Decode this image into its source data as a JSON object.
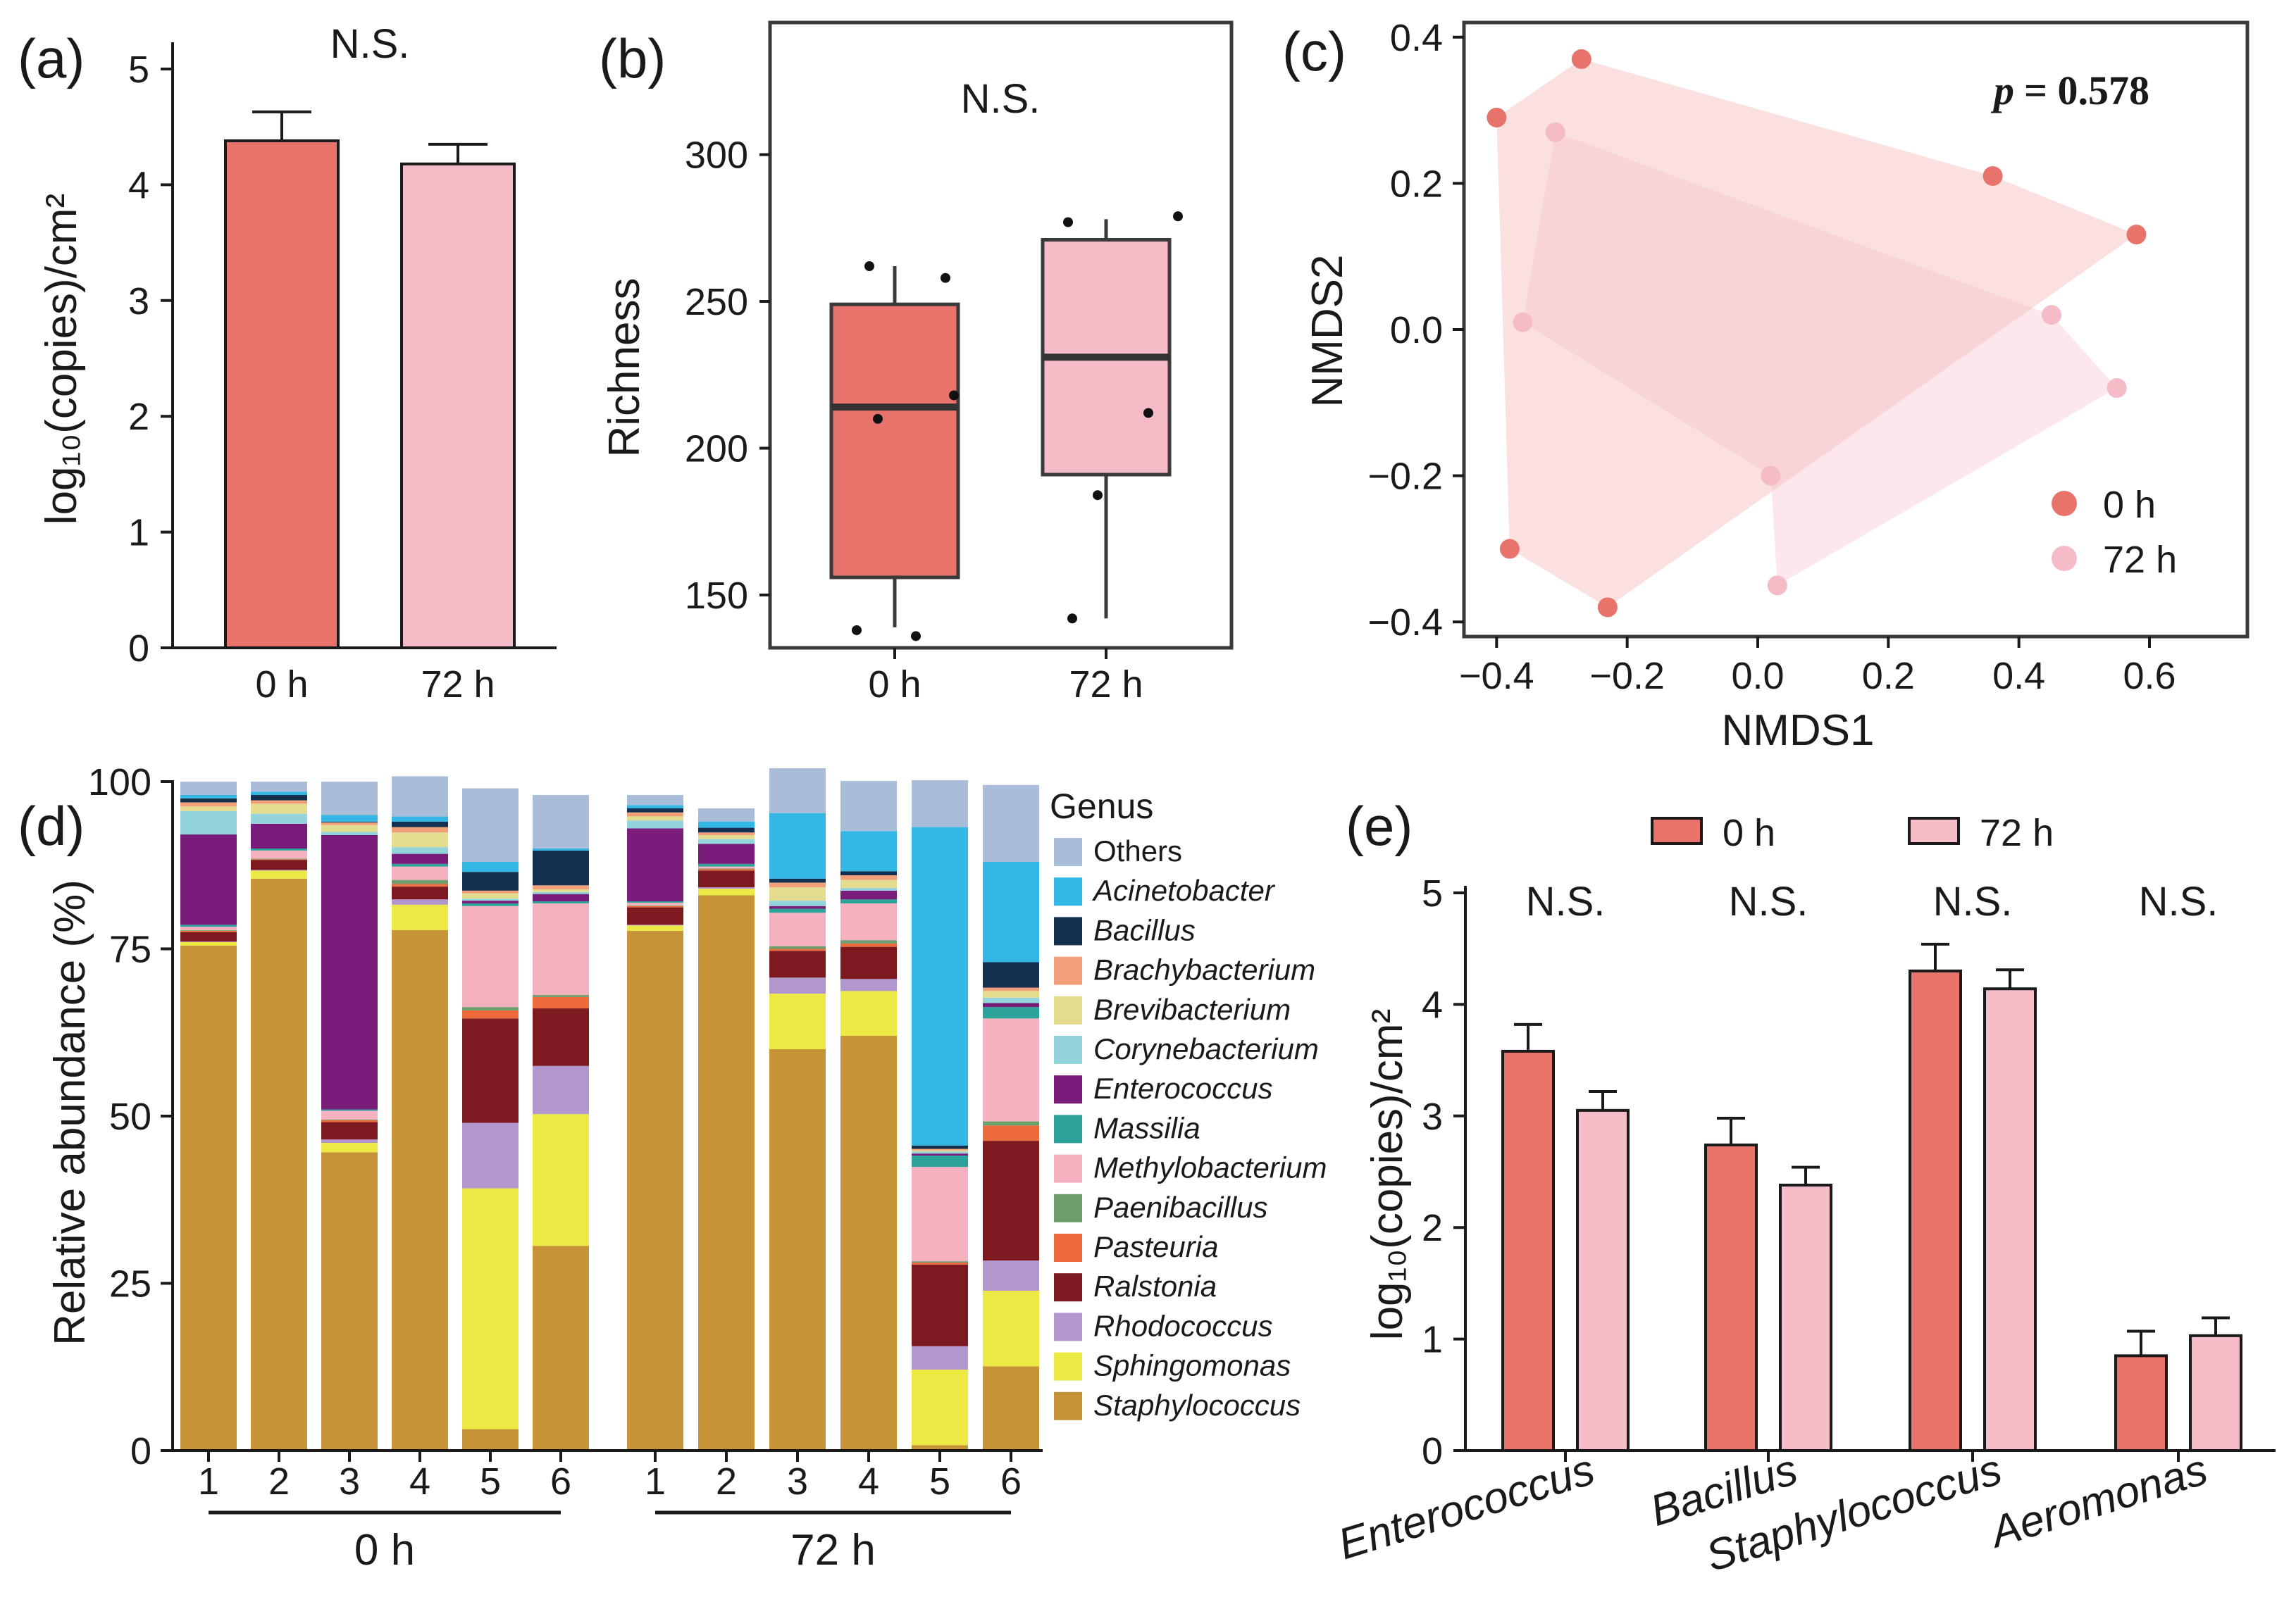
{
  "chart_data": [
    {
      "id": "a",
      "type": "bar",
      "panel_label": "(a)",
      "categories": [
        "0 h",
        "72 h"
      ],
      "values": [
        4.38,
        4.18
      ],
      "errors": [
        0.25,
        0.17
      ],
      "colors": [
        "#e8736b",
        "#f5bcc8"
      ],
      "ylabel": "log₁₀(copies)/cm²",
      "ylim": [
        0,
        5
      ],
      "yticks": [
        "0",
        "1",
        "2",
        "3",
        "4",
        "5"
      ],
      "annotation": "N.S."
    },
    {
      "id": "b",
      "type": "box",
      "panel_label": "(b)",
      "categories": [
        "0 h",
        "72 h"
      ],
      "ylabel": "Richness",
      "ylim": [
        132,
        345
      ],
      "yticks": [
        "150",
        "200",
        "250",
        "300"
      ],
      "annotation": "N.S.",
      "boxes": [
        {
          "q1": 156,
          "median": 214,
          "q3": 249,
          "whisker_low": 139,
          "whisker_high": 262,
          "color": "#e8736b",
          "points": [
            [
              -0.06,
              262
            ],
            [
              0.12,
              258
            ],
            [
              -0.04,
              210
            ],
            [
              0.14,
              218
            ],
            [
              -0.09,
              138
            ],
            [
              0.05,
              136
            ]
          ]
        },
        {
          "q1": 191,
          "median": 231,
          "q3": 271,
          "whisker_low": 142,
          "whisker_high": 278,
          "color": "#f5bcc8",
          "points": [
            [
              -0.09,
              277
            ],
            [
              0.17,
              279
            ],
            [
              0.1,
              212
            ],
            [
              -0.02,
              184
            ],
            [
              -0.08,
              142
            ]
          ]
        }
      ]
    },
    {
      "id": "c",
      "type": "scatter",
      "panel_label": "(c)",
      "xlabel": "NMDS1",
      "ylabel": "NMDS2",
      "xlim": [
        -0.45,
        0.75
      ],
      "ylim": [
        -0.42,
        0.42
      ],
      "xticks": [
        "−0.4",
        "−0.2",
        "0.0",
        "0.2",
        "0.4",
        "0.6"
      ],
      "yticks": [
        "−0.4",
        "−0.2",
        "0.0",
        "0.2",
        "0.4"
      ],
      "p_label": "p",
      "p_value": "= 0.578",
      "series": [
        {
          "name": "0 h",
          "color": "#e8736b",
          "points": [
            [
              -0.27,
              0.37
            ],
            [
              -0.4,
              0.29
            ],
            [
              0.36,
              0.21
            ],
            [
              0.58,
              0.13
            ],
            [
              -0.38,
              -0.3
            ],
            [
              -0.23,
              -0.38
            ]
          ]
        },
        {
          "name": "72 h",
          "color": "#f5bcc8",
          "points": [
            [
              -0.31,
              0.27
            ],
            [
              -0.36,
              0.01
            ],
            [
              0.45,
              0.02
            ],
            [
              0.55,
              -0.08
            ],
            [
              0.02,
              -0.2
            ],
            [
              0.03,
              -0.35
            ]
          ]
        }
      ],
      "hulls": [
        {
          "color": "#e8736b",
          "opacity": 0.22,
          "order": [
            0,
            2,
            3,
            5,
            4,
            1
          ]
        },
        {
          "color": "#f5bcc8",
          "opacity": 0.35,
          "order": [
            0,
            2,
            3,
            5,
            4,
            1
          ]
        }
      ]
    },
    {
      "id": "d",
      "type": "stacked-bar",
      "panel_label": "(d)",
      "ylabel": "Relative abundance (%)",
      "ylim": [
        0,
        100
      ],
      "yticks": [
        "0",
        "25",
        "50",
        "75",
        "100"
      ],
      "legend_title": "Genus",
      "groups": [
        {
          "name": "0 h",
          "samples": [
            "1",
            "2",
            "3",
            "4",
            "5",
            "6"
          ]
        },
        {
          "name": "72 h",
          "samples": [
            "1",
            "2",
            "3",
            "4",
            "5",
            "6"
          ]
        }
      ],
      "genera": [
        {
          "name": "Others",
          "color": "#a9bdd9",
          "italic": false
        },
        {
          "name": "Acinetobacter",
          "color": "#33b8e6",
          "italic": true
        },
        {
          "name": "Bacillus",
          "color": "#13304f",
          "italic": true
        },
        {
          "name": "Brachybacterium",
          "color": "#f2a07a",
          "italic": true
        },
        {
          "name": "Brevibacterium",
          "color": "#e3dc8e",
          "italic": true
        },
        {
          "name": "Corynebacterium",
          "color": "#93d3dc",
          "italic": true
        },
        {
          "name": "Enterococcus",
          "color": "#7a1c7a",
          "italic": true
        },
        {
          "name": "Massilia",
          "color": "#2ba39b",
          "italic": true
        },
        {
          "name": "Methylobacterium",
          "color": "#f5b1bf",
          "italic": true
        },
        {
          "name": "Paenibacillus",
          "color": "#6b9e6b",
          "italic": true
        },
        {
          "name": "Pasteuria",
          "color": "#ec6a3b",
          "italic": true
        },
        {
          "name": "Ralstonia",
          "color": "#7d1a1f",
          "italic": true
        },
        {
          "name": "Rhodococcus",
          "color": "#b197cd",
          "italic": true
        },
        {
          "name": "Sphingomonas",
          "color": "#ece844",
          "italic": true
        },
        {
          "name": "Staphylococcus",
          "color": "#c69436",
          "italic": true
        }
      ],
      "abundance": [
        [
          2.0,
          0.5,
          0.6,
          0.6,
          0.7,
          3.5,
          13.5,
          0.3,
          0.5,
          0.1,
          0.2,
          1.4,
          0.1,
          0.5,
          75.5
        ],
        [
          1.5,
          0.5,
          0.8,
          0.5,
          1.5,
          1.5,
          3.7,
          0.3,
          1.2,
          0.1,
          0.1,
          1.5,
          0.1,
          1.2,
          85.5
        ],
        [
          5.0,
          1.0,
          0.1,
          0.4,
          1.0,
          0.5,
          41.0,
          0.2,
          1.3,
          0.1,
          0.3,
          2.6,
          0.5,
          1.4,
          44.6
        ],
        [
          6.0,
          0.8,
          0.8,
          0.8,
          2.2,
          1.0,
          1.5,
          0.4,
          2.0,
          0.6,
          0.4,
          1.9,
          0.8,
          3.8,
          77.8
        ],
        [
          11.0,
          1.5,
          2.8,
          0.4,
          0.8,
          0.3,
          0.4,
          0.4,
          15.1,
          0.5,
          1.2,
          15.6,
          9.8,
          36.0,
          3.2
        ],
        [
          8.0,
          0.3,
          5.2,
          0.6,
          0.4,
          0.3,
          1.1,
          0.3,
          13.7,
          0.3,
          1.7,
          8.6,
          7.2,
          19.7,
          30.6
        ],
        [
          1.5,
          0.5,
          0.6,
          0.6,
          0.6,
          1.2,
          10.9,
          0.2,
          0.4,
          0.1,
          0.2,
          2.6,
          0.1,
          0.8,
          77.7
        ],
        [
          2.0,
          0.9,
          0.7,
          0.4,
          0.6,
          0.7,
          3.0,
          0.4,
          0.3,
          0.1,
          0.2,
          2.5,
          0.2,
          1.0,
          83.0
        ],
        [
          6.7,
          9.8,
          0.6,
          0.7,
          2.0,
          0.8,
          0.4,
          0.6,
          5.0,
          0.4,
          0.3,
          4.0,
          2.4,
          8.3,
          60.0
        ],
        [
          7.5,
          6.0,
          0.6,
          0.7,
          1.2,
          0.4,
          1.3,
          0.6,
          5.5,
          0.5,
          0.5,
          4.8,
          1.8,
          6.7,
          62.0
        ],
        [
          7.0,
          47.6,
          0.5,
          0.2,
          0.2,
          0.3,
          0.3,
          1.7,
          14.1,
          0.2,
          0.3,
          12.2,
          3.5,
          11.3,
          0.8
        ],
        [
          11.5,
          15.0,
          3.8,
          0.5,
          1.0,
          0.8,
          0.6,
          1.7,
          15.4,
          0.6,
          2.3,
          17.9,
          4.5,
          11.3,
          12.6
        ]
      ]
    },
    {
      "id": "e",
      "type": "bar",
      "panel_label": "(e)",
      "categories": [
        "Enterococcus",
        "Bacillus",
        "Staphylococcus",
        "Aeromonas"
      ],
      "series": [
        {
          "name": "0 h",
          "color": "#e8736b",
          "values": [
            3.58,
            2.74,
            4.3,
            0.85
          ],
          "errors": [
            0.24,
            0.24,
            0.24,
            0.22
          ]
        },
        {
          "name": "72 h",
          "color": "#f5bcc8",
          "values": [
            3.05,
            2.38,
            4.14,
            1.03
          ],
          "errors": [
            0.17,
            0.16,
            0.17,
            0.16
          ]
        }
      ],
      "ylabel": "log₁₀(copies)/cm²",
      "ylim": [
        0,
        5
      ],
      "yticks": [
        "0",
        "1",
        "2",
        "3",
        "4",
        "5"
      ],
      "annotations": [
        "N.S.",
        "N.S.",
        "N.S.",
        "N.S."
      ]
    }
  ]
}
